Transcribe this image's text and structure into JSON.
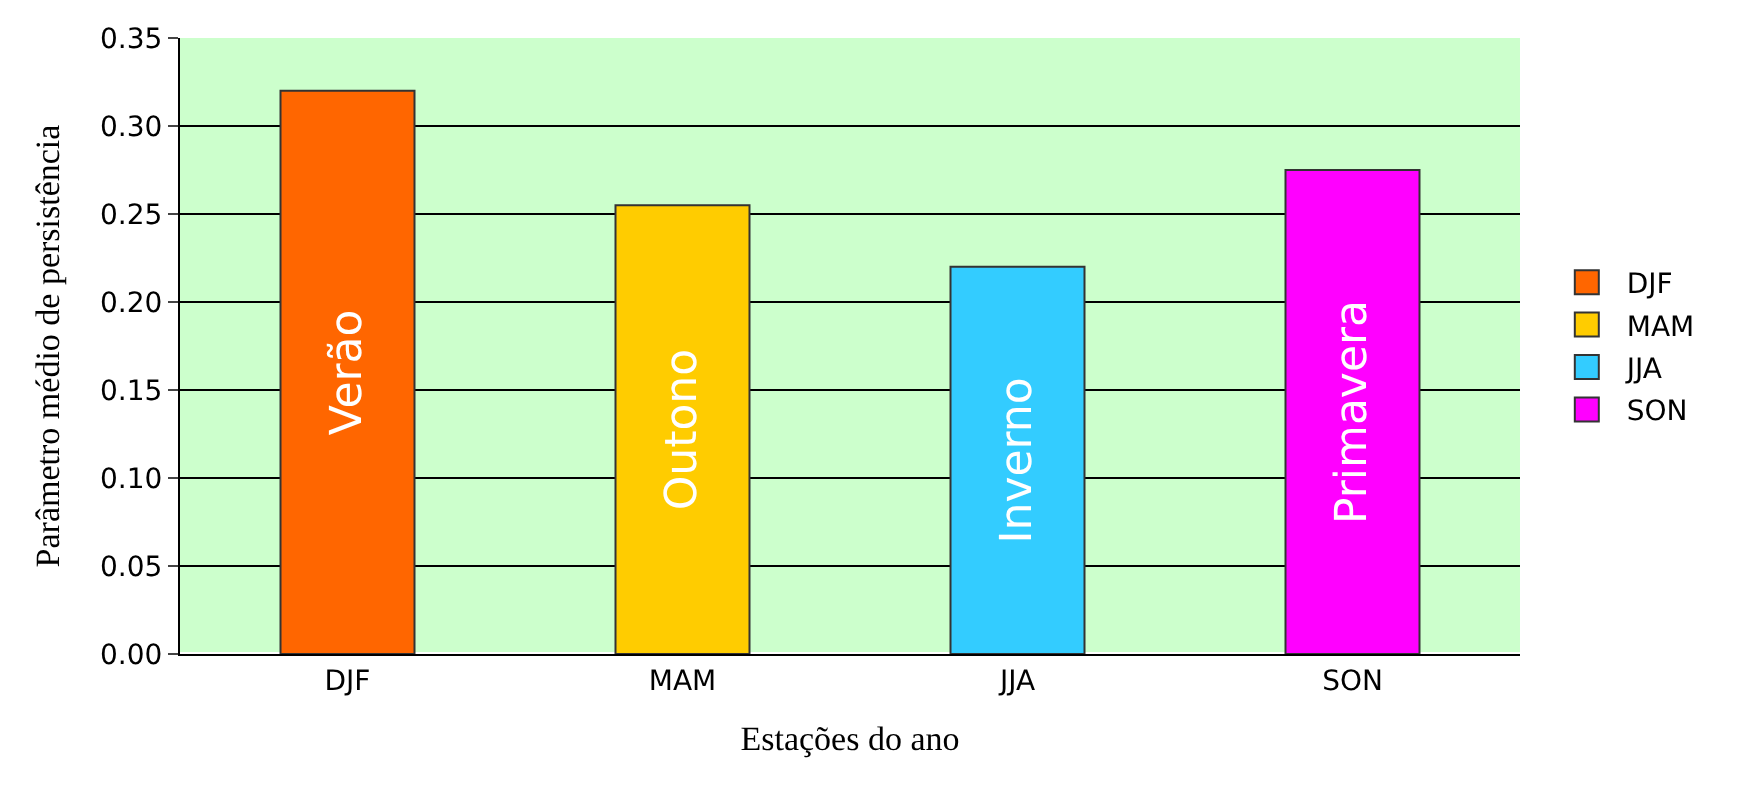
{
  "chart_data": {
    "type": "bar",
    "xlabel": "Estações do ano",
    "ylabel": "Parâmetro médio de persistência",
    "categories": [
      "DJF",
      "MAM",
      "JJA",
      "SON"
    ],
    "series": [
      {
        "name": "DJF",
        "color": "#ff6600",
        "values": [
          0.32,
          null,
          null,
          null
        ],
        "value_labels": [
          "Verão",
          null,
          null,
          null
        ]
      },
      {
        "name": "MAM",
        "color": "#ffcc00",
        "values": [
          null,
          0.255,
          null,
          null
        ],
        "value_labels": [
          null,
          "Outono",
          null,
          null
        ]
      },
      {
        "name": "JJA",
        "color": "#33ccff",
        "values": [
          null,
          null,
          0.22,
          null
        ],
        "value_labels": [
          null,
          null,
          "Inverno",
          null
        ]
      },
      {
        "name": "SON",
        "color": "#ff00ff",
        "values": [
          null,
          null,
          null,
          0.275
        ],
        "value_labels": [
          null,
          null,
          null,
          "Primavera"
        ]
      }
    ],
    "ylim": [
      0,
      0.35
    ],
    "yticks": [
      {
        "value": 0,
        "label": "0.00"
      },
      {
        "value": 0.05,
        "label": "0.05"
      },
      {
        "value": 0.1,
        "label": "0.10"
      },
      {
        "value": 0.15,
        "label": "0.15"
      },
      {
        "value": 0.2,
        "label": "0.20"
      },
      {
        "value": 0.25,
        "label": "0.25"
      },
      {
        "value": 0.3,
        "label": "0.30"
      },
      {
        "value": 0.35,
        "label": "0.35"
      }
    ],
    "grid": "y",
    "legend": "right"
  }
}
